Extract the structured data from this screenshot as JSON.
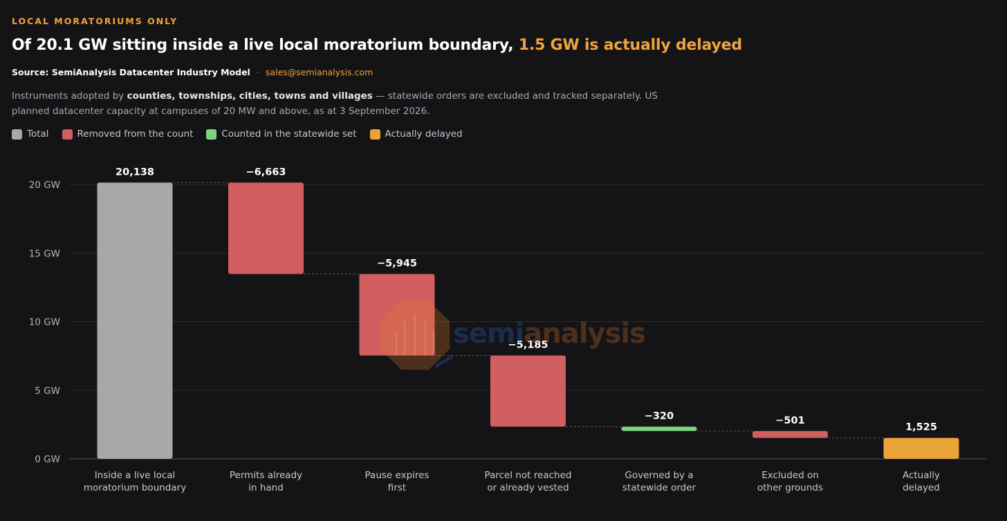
{
  "header": {
    "eyebrow": "LOCAL MORATORIUMS ONLY",
    "title_main": "Of 20.1 GW sitting inside a live local moratorium boundary, ",
    "title_highlight": "1.5 GW is actually delayed",
    "source": "Source: SemiAnalysis Datacenter Industry Model",
    "separator": "·",
    "email": "sales@semianalysis.com",
    "desc_1": "Instruments adopted by ",
    "desc_bold": "counties, townships, cities, towns and villages",
    "desc_2": " — statewide orders are excluded and tracked separately. US planned datacenter capacity at campuses of 20 MW and above, as at 3 September 2026."
  },
  "legend": {
    "items": [
      {
        "label": "Total",
        "color": "#a8a8a8"
      },
      {
        "label": "Removed from the count",
        "color": "#d25f5f"
      },
      {
        "label": "Counted in the statewide set",
        "color": "#7fd483"
      },
      {
        "label": "Actually delayed",
        "color": "#e9a337"
      }
    ]
  },
  "watermark": {
    "text_a": "semi",
    "text_b": "analysis"
  },
  "chart_data": {
    "type": "waterfall",
    "unit": "MW",
    "y_ticks": [
      {
        "value": 0,
        "label": "0 GW"
      },
      {
        "value": 5000,
        "label": "5 GW"
      },
      {
        "value": 10000,
        "label": "10 GW"
      },
      {
        "value": 15000,
        "label": "15 GW"
      },
      {
        "value": 20000,
        "label": "20 GW"
      }
    ],
    "ylim": [
      0,
      20138
    ],
    "grid": true,
    "legend_position": "top-left",
    "steps": [
      {
        "category": [
          "Inside a live local",
          "moratorium boundary"
        ],
        "value": 20138,
        "label": "20,138",
        "kind": "total"
      },
      {
        "category": [
          "Permits already",
          "in hand"
        ],
        "value": -6663,
        "label": "−6,663",
        "kind": "removed"
      },
      {
        "category": [
          "Pause expires",
          "first"
        ],
        "value": -5945,
        "label": "−5,945",
        "kind": "removed"
      },
      {
        "category": [
          "Parcel not reached",
          "or already vested"
        ],
        "value": -5185,
        "label": "−5,185",
        "kind": "removed"
      },
      {
        "category": [
          "Governed by a",
          "statewide order"
        ],
        "value": -320,
        "label": "−320",
        "kind": "statewide"
      },
      {
        "category": [
          "Excluded on",
          "other grounds"
        ],
        "value": -501,
        "label": "−501",
        "kind": "removed"
      },
      {
        "category": [
          "Actually",
          "delayed"
        ],
        "value": 1525,
        "label": "1,525",
        "kind": "delayed"
      }
    ],
    "colors": {
      "total": "#a8a8a8",
      "removed": "#d25f5f",
      "statewide": "#7fd483",
      "delayed": "#e9a337",
      "grid": "#2c2c31",
      "axis": "#55555b",
      "connector": "#5e5e66",
      "tick_label": "#b5b5ba",
      "category_label": "#c9c9ce",
      "value_label": "#ffffff"
    }
  }
}
